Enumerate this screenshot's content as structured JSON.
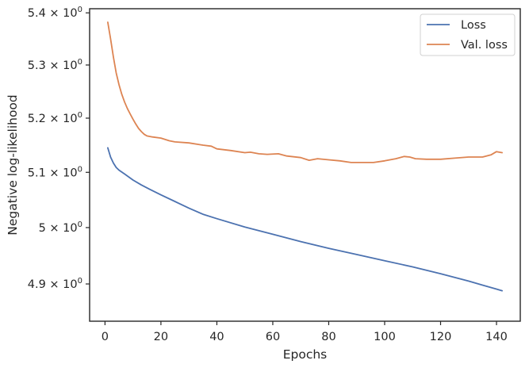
{
  "chart_data": {
    "type": "line",
    "title": "",
    "xlabel": "Epochs",
    "ylabel": "Negative log-likelihood",
    "yscale": "log",
    "xlim": [
      -5.5,
      148.5
    ],
    "ylim": [
      4.835,
      5.408
    ],
    "x_ticks": [
      0,
      20,
      40,
      60,
      80,
      100,
      120,
      140
    ],
    "y_ticks": [
      {
        "value": 4.9,
        "mantissa": "4.9",
        "exp": "0"
      },
      {
        "value": 5.0,
        "mantissa": "5",
        "exp": "0"
      },
      {
        "value": 5.1,
        "mantissa": "5.1",
        "exp": "0"
      },
      {
        "value": 5.2,
        "mantissa": "5.2",
        "exp": "0"
      },
      {
        "value": 5.3,
        "mantissa": "5.3",
        "exp": "0"
      },
      {
        "value": 5.4,
        "mantissa": "5.4",
        "exp": "0"
      }
    ],
    "grid": false,
    "legend_position": "top-right",
    "series": [
      {
        "name": "Loss",
        "color": "#4c72b0",
        "points": [
          [
            1,
            5.145
          ],
          [
            2,
            5.128
          ],
          [
            3,
            5.117
          ],
          [
            4,
            5.109
          ],
          [
            5,
            5.104
          ],
          [
            7,
            5.097
          ],
          [
            10,
            5.086
          ],
          [
            13,
            5.077
          ],
          [
            16,
            5.069
          ],
          [
            20,
            5.059
          ],
          [
            25,
            5.047
          ],
          [
            30,
            5.035
          ],
          [
            35,
            5.024
          ],
          [
            40,
            5.016
          ],
          [
            50,
            5.001
          ],
          [
            60,
            4.988
          ],
          [
            70,
            4.975
          ],
          [
            80,
            4.963
          ],
          [
            90,
            4.952
          ],
          [
            100,
            4.941
          ],
          [
            110,
            4.93
          ],
          [
            120,
            4.918
          ],
          [
            130,
            4.905
          ],
          [
            135,
            4.898
          ],
          [
            140,
            4.891
          ],
          [
            142,
            4.888
          ]
        ]
      },
      {
        "name": "Val. loss",
        "color": "#dd8452",
        "points": [
          [
            1,
            5.382
          ],
          [
            2,
            5.35
          ],
          [
            3,
            5.315
          ],
          [
            4,
            5.285
          ],
          [
            5,
            5.263
          ],
          [
            6,
            5.245
          ],
          [
            7,
            5.23
          ],
          [
            8,
            5.218
          ],
          [
            9,
            5.208
          ],
          [
            10,
            5.198
          ],
          [
            11,
            5.189
          ],
          [
            12,
            5.181
          ],
          [
            13,
            5.175
          ],
          [
            14,
            5.17
          ],
          [
            15,
            5.167
          ],
          [
            17,
            5.165
          ],
          [
            20,
            5.163
          ],
          [
            23,
            5.158
          ],
          [
            25,
            5.156
          ],
          [
            30,
            5.154
          ],
          [
            35,
            5.15
          ],
          [
            38,
            5.148
          ],
          [
            40,
            5.143
          ],
          [
            45,
            5.14
          ],
          [
            50,
            5.136
          ],
          [
            52,
            5.137
          ],
          [
            55,
            5.134
          ],
          [
            58,
            5.133
          ],
          [
            62,
            5.134
          ],
          [
            65,
            5.13
          ],
          [
            70,
            5.127
          ],
          [
            73,
            5.122
          ],
          [
            76,
            5.125
          ],
          [
            80,
            5.123
          ],
          [
            84,
            5.121
          ],
          [
            88,
            5.118
          ],
          [
            92,
            5.118
          ],
          [
            96,
            5.118
          ],
          [
            100,
            5.121
          ],
          [
            104,
            5.125
          ],
          [
            107,
            5.129
          ],
          [
            109,
            5.128
          ],
          [
            111,
            5.125
          ],
          [
            115,
            5.124
          ],
          [
            120,
            5.124
          ],
          [
            125,
            5.126
          ],
          [
            130,
            5.128
          ],
          [
            135,
            5.128
          ],
          [
            138,
            5.132
          ],
          [
            140,
            5.138
          ],
          [
            142,
            5.136
          ]
        ]
      }
    ]
  }
}
